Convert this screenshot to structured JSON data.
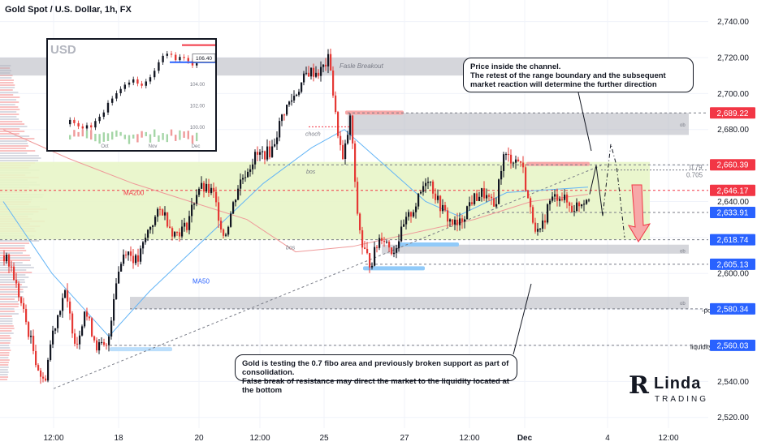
{
  "window": {
    "title": "Gold Spot / U.S. Dollar, 1h, FX"
  },
  "callouts": {
    "top": "Price inside the channel.\nThe retest of the range boundary and the subsequent market reaction will determine the further direction",
    "bottom": "Gold is testing the 0.7 fibo area and previously broken support as part of consolidation.\nFalse break of resistance may direct the market to the liquidity located at the bottom"
  },
  "logo": {
    "r": "R",
    "name": "Linda",
    "sub": "TRADING"
  },
  "colors": {
    "up": "#131722",
    "down": "#e53935",
    "accent_blue": "#2962ff",
    "accent_red": "#f23645",
    "range_fill": "#e8f5c8",
    "zone_grey": "#b2b5be"
  },
  "chart_data": {
    "type": "candlestick",
    "symbol": "Gold Spot / U.S. Dollar",
    "interval": "1h",
    "ylim": [
      2514,
      2752
    ],
    "y_ticks": [
      2520,
      2540,
      2560,
      2580,
      2600,
      2620,
      2640,
      2660,
      2680,
      2700,
      2720,
      2740
    ],
    "x_ticks": [
      "12:00",
      "18",
      "20",
      "12:00",
      "25",
      "27",
      "12:00",
      "Dec",
      "4",
      "12:00"
    ],
    "price_labels": [
      {
        "value": "2,689.22",
        "color": "#f23645"
      },
      {
        "value": "2,660.39",
        "color": "#f23645"
      },
      {
        "value": "2,646.17",
        "color": "#f23645"
      },
      {
        "value": "2,633.91",
        "color": "#2962ff"
      },
      {
        "value": "2,618.74",
        "color": "#2962ff"
      },
      {
        "value": "2,605.13",
        "color": "#2962ff"
      },
      {
        "value": "2,580.34",
        "color": "#2962ff"
      },
      {
        "value": "2,560.03",
        "color": "#2962ff"
      }
    ],
    "annotations": {
      "false_breakout": "Fasle Breakout",
      "choch": "choch",
      "bos1": "bos",
      "bos2": "bos",
      "ma200": "MA200",
      "ma50": "MA50",
      "fib79": "0.79",
      "fib705": "0.705",
      "poi": "-poi",
      "liquidity": "liquidity",
      "ob": "ob"
    },
    "anchors": [
      [
        0,
        2610
      ],
      [
        10,
        2603
      ],
      [
        25,
        2578
      ],
      [
        40,
        2552
      ],
      [
        50,
        2538
      ],
      [
        60,
        2566
      ],
      [
        75,
        2590
      ],
      [
        90,
        2560
      ],
      [
        100,
        2580
      ],
      [
        115,
        2560
      ],
      [
        128,
        2558
      ],
      [
        138,
        2595
      ],
      [
        150,
        2614
      ],
      [
        165,
        2606
      ],
      [
        180,
        2626
      ],
      [
        195,
        2636
      ],
      [
        210,
        2622
      ],
      [
        225,
        2626
      ],
      [
        240,
        2648
      ],
      [
        258,
        2645
      ],
      [
        272,
        2620
      ],
      [
        290,
        2650
      ],
      [
        310,
        2665
      ],
      [
        330,
        2668
      ],
      [
        345,
        2690
      ],
      [
        360,
        2700
      ],
      [
        375,
        2712
      ],
      [
        390,
        2712
      ],
      [
        402,
        2720
      ],
      [
        408,
        2690
      ],
      [
        418,
        2662
      ],
      [
        428,
        2688
      ],
      [
        434,
        2640
      ],
      [
        442,
        2615
      ],
      [
        452,
        2605
      ],
      [
        465,
        2622
      ],
      [
        480,
        2612
      ],
      [
        495,
        2628
      ],
      [
        510,
        2640
      ],
      [
        522,
        2655
      ],
      [
        535,
        2640
      ],
      [
        548,
        2630
      ],
      [
        560,
        2626
      ],
      [
        575,
        2640
      ],
      [
        590,
        2645
      ],
      [
        605,
        2636
      ],
      [
        615,
        2665
      ],
      [
        625,
        2664
      ],
      [
        638,
        2662
      ],
      [
        648,
        2636
      ],
      [
        660,
        2620
      ],
      [
        672,
        2640
      ],
      [
        685,
        2644
      ],
      [
        700,
        2636
      ],
      [
        712,
        2640
      ],
      [
        722,
        2644
      ]
    ],
    "ma50": [
      [
        0,
        2640
      ],
      [
        60,
        2600
      ],
      [
        130,
        2565
      ],
      [
        180,
        2590
      ],
      [
        250,
        2620
      ],
      [
        320,
        2650
      ],
      [
        380,
        2670
      ],
      [
        420,
        2680
      ],
      [
        470,
        2660
      ],
      [
        520,
        2640
      ],
      [
        560,
        2632
      ],
      [
        620,
        2645
      ],
      [
        720,
        2648
      ]
    ],
    "ma200": [
      [
        0,
        2680
      ],
      [
        80,
        2664
      ],
      [
        160,
        2650
      ],
      [
        230,
        2640
      ],
      [
        300,
        2630
      ],
      [
        360,
        2612
      ],
      [
        430,
        2615
      ],
      [
        500,
        2622
      ],
      [
        580,
        2630
      ],
      [
        650,
        2640
      ],
      [
        720,
        2644
      ]
    ],
    "scenario_path": [
      [
        722,
        2644
      ],
      [
        730,
        2660
      ],
      [
        738,
        2632
      ]
    ],
    "scenario_path2": [
      [
        738,
        2632
      ],
      [
        748,
        2672
      ],
      [
        755,
        2660
      ],
      [
        765,
        2620
      ]
    ],
    "inset": {
      "currency": "USD",
      "y_ticks": [
        "104.00",
        "102.00",
        "100.00"
      ],
      "x_ticks": [
        "Oct",
        "Nov",
        "Dec"
      ],
      "value_label": "106.40",
      "series": [
        100.2,
        100.6,
        100.3,
        100.0,
        99.8,
        100.1,
        99.9,
        100.5,
        100.9,
        101.3,
        102.2,
        102.6,
        103.1,
        103.5,
        103.9,
        104.1,
        104.4,
        104.0,
        103.8,
        104.2,
        104.6,
        105.2,
        106.0,
        106.6,
        106.8,
        106.7,
        106.2,
        106.5,
        106.4,
        106.1,
        105.7,
        105.9
      ]
    }
  }
}
